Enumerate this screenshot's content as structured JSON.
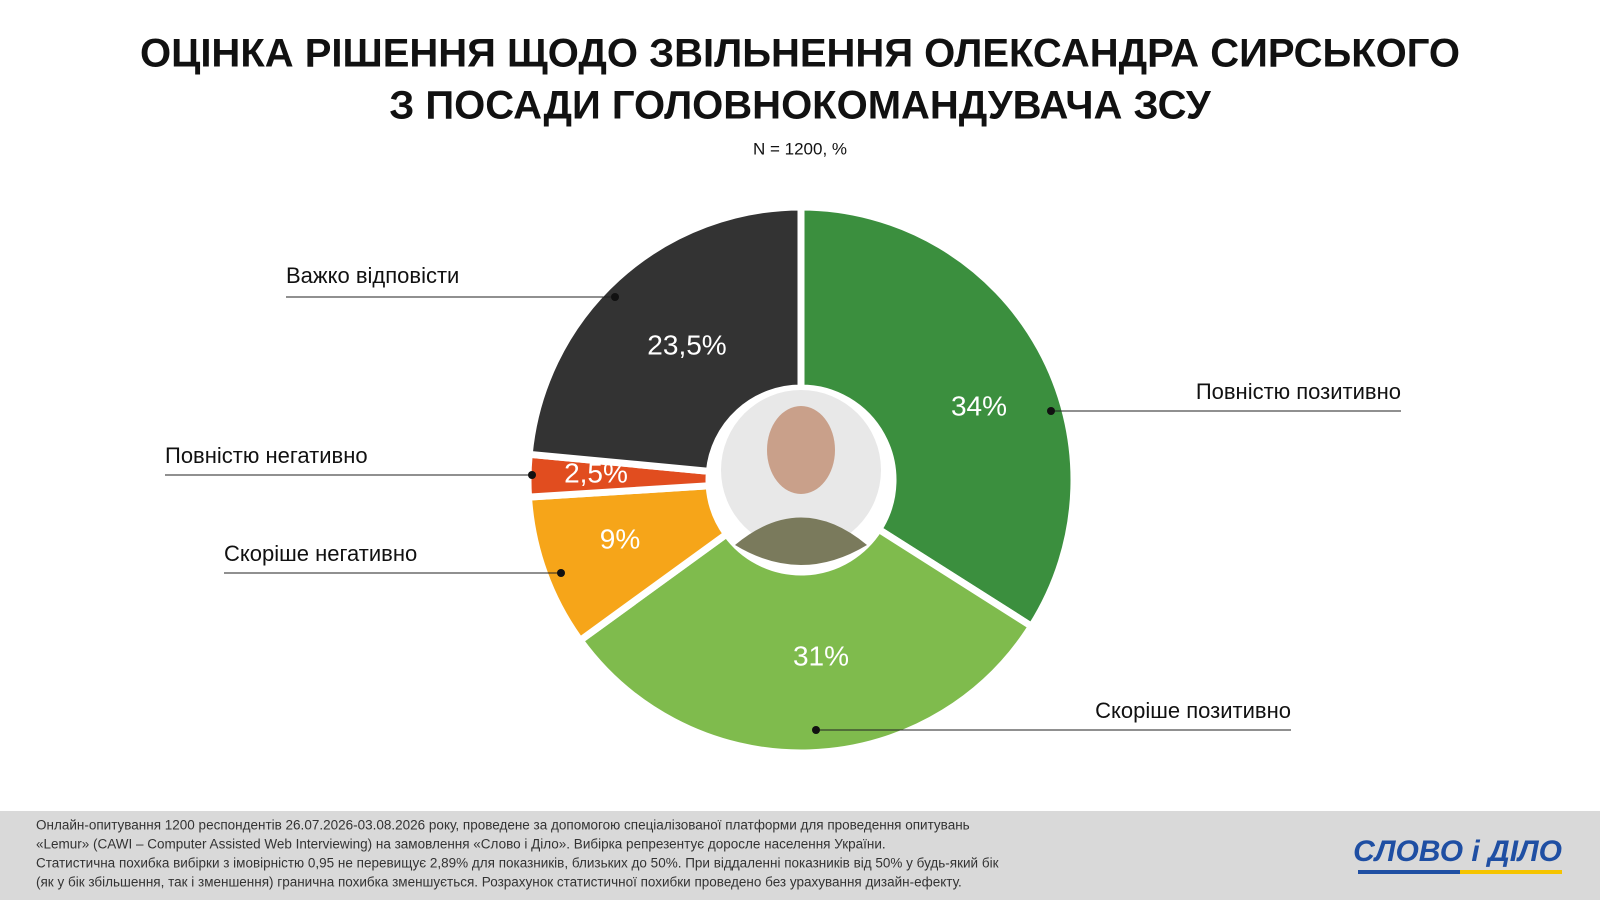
{
  "chart_data": {
    "type": "donut",
    "title": [
      "ОЦІНКА РІШЕННЯ ЩОДО ЗВІЛЬНЕННЯ ОЛЕКСАНДРА СИРСЬКОГО",
      "З ПОСАДИ ГОЛОВНОКОМАНДУВАЧА ЗСУ"
    ],
    "subtitle": "N = 1200, %",
    "categories": [
      "Повністю позитивно",
      "Скоріше позитивно",
      "Скоріше негативно",
      "Повністю негативно",
      "Важко відповісти"
    ],
    "values": [
      34,
      31,
      9,
      2.5,
      23.5
    ],
    "value_labels": [
      "34%",
      "31%",
      "9%",
      "2,5%",
      "23,5%"
    ],
    "colors": [
      "#3b8f3e",
      "#7fbb4d",
      "#f6a519",
      "#e14d1f",
      "#333333"
    ],
    "note": [
      "Онлайн-опитування 1200 респондентів 26.07.2026-03.08.2026 року, проведене за допомогою спеціалізованої платформи для проведення опитувань",
      "«Lemur» (CAWI – Computer Assisted Web Interviewing) на замовлення «Слово і Діло». Вибірка репрезентує доросле населення України.",
      "Статистична похибка вибірки з імовірністю 0,95 не перевищує 2,89% для показників, близьких до 50%. При віддаленні показників від 50% у будь-який бік",
      "(як у бік збільшення, так і зменшення) гранична похибка зменшується. Розрахунок статистичної похибки проведено без урахування дизайн-ефекту."
    ],
    "logo": "СЛОВО і ДІЛО"
  }
}
